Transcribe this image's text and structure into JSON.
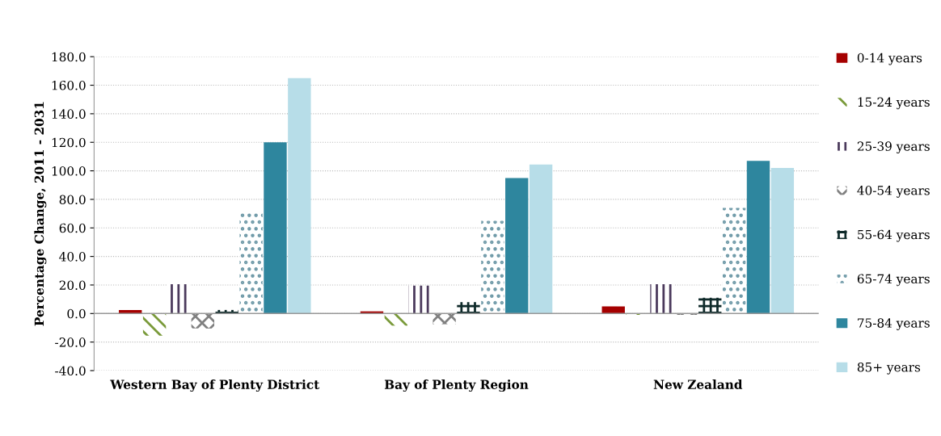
{
  "chart_data": {
    "type": "bar",
    "ylabel": "Percentage Change, 2011 - 2031",
    "categories": [
      "Western Bay of Plenty District",
      "Bay of Plenty Region",
      "New Zealand"
    ],
    "series": [
      {
        "name": "0-14 years",
        "color": "#a50000",
        "values": [
          2.4,
          1.5,
          5.0
        ]
      },
      {
        "name": "15-24 years",
        "color": "#7a9a3a",
        "values": [
          -15.5,
          -8.5,
          -1.0
        ]
      },
      {
        "name": "25-39 years",
        "color": "#4b3a5c",
        "values": [
          20.5,
          19.5,
          20.5
        ]
      },
      {
        "name": "40-54 years",
        "color": "#808080",
        "values": [
          -10.5,
          -7.5,
          -1.0
        ]
      },
      {
        "name": "55-64 years",
        "color": "#0f2a2a",
        "values": [
          2.5,
          8.0,
          11.0
        ]
      },
      {
        "name": "65-74 years",
        "color": "#6f9aa8",
        "values": [
          72.0,
          65.0,
          74.0
        ]
      },
      {
        "name": "75-84 years",
        "color": "#2e869e",
        "values": [
          120.0,
          95.0,
          107.0
        ]
      },
      {
        "name": "85+ years",
        "color": "#b7dde8",
        "values": [
          165.0,
          104.5,
          102.0
        ]
      }
    ],
    "ylim": [
      -40,
      180
    ],
    "yticks": [
      {
        "value": -40,
        "label": "-40.0"
      },
      {
        "value": -20,
        "label": "-20.0"
      },
      {
        "value": 0,
        "label": "0.0"
      },
      {
        "value": 20,
        "label": "20.0"
      },
      {
        "value": 40,
        "label": "40.0"
      },
      {
        "value": 60,
        "label": "60.0"
      },
      {
        "value": 80,
        "label": "80.0"
      },
      {
        "value": 100,
        "label": "100.0"
      },
      {
        "value": 120,
        "label": "120.0"
      },
      {
        "value": 140,
        "label": "140.0"
      },
      {
        "value": 160,
        "label": "160.0"
      },
      {
        "value": 180,
        "label": "180.0"
      }
    ],
    "grid": "y",
    "legend": "right"
  }
}
